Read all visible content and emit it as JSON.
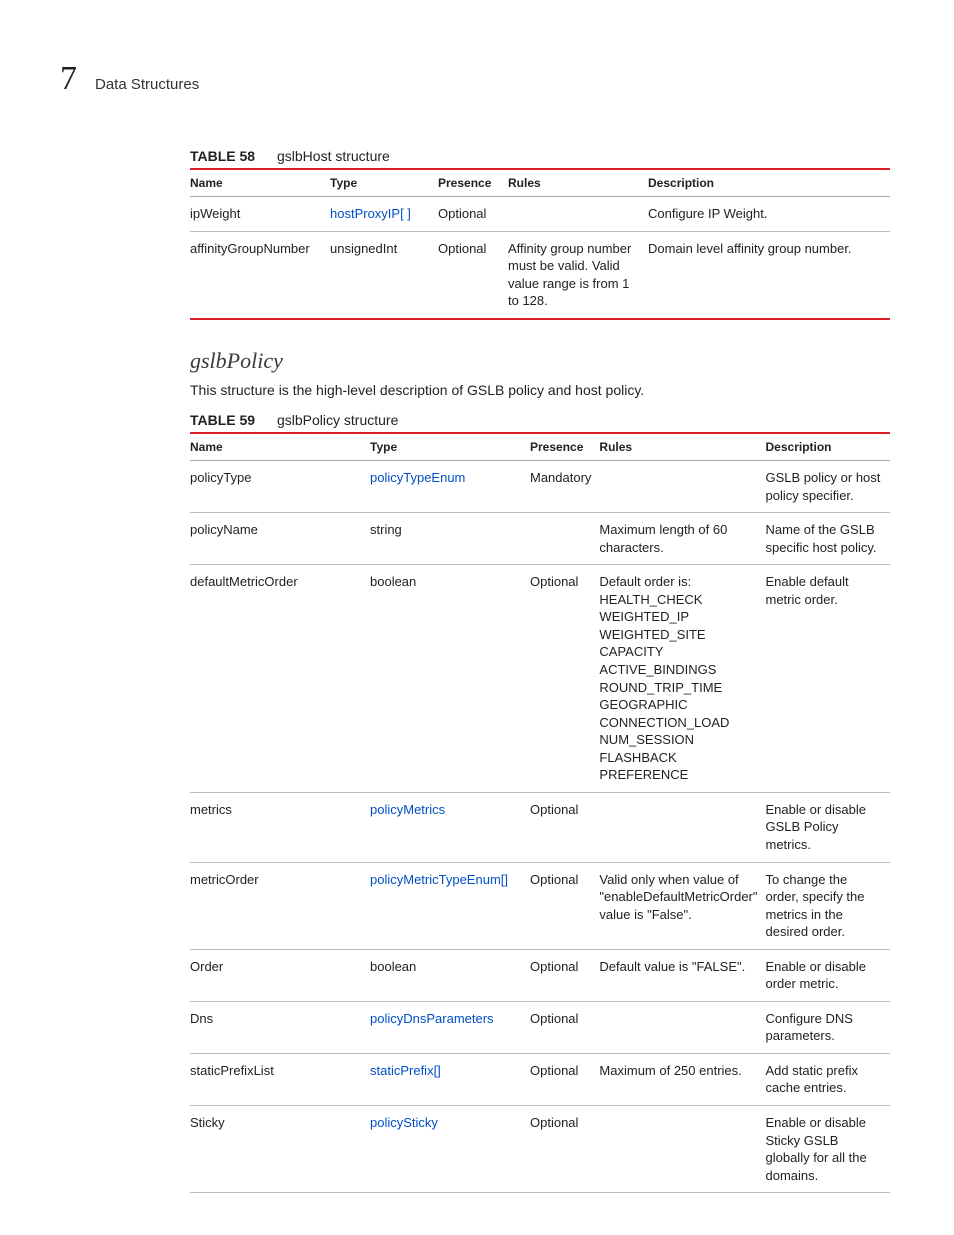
{
  "header": {
    "chapter_number": "7",
    "chapter_label": "Data Structures"
  },
  "table58": {
    "label": "TABLE 58",
    "title": "gslbHost structure",
    "columns": [
      "Name",
      "Type",
      "Presence",
      "Rules",
      "Description"
    ],
    "rows": [
      {
        "name": "ipWeight",
        "type_text": "hostProxyIP[ ]",
        "type_is_link": true,
        "presence": "Optional",
        "rules": "",
        "description": "Configure IP Weight."
      },
      {
        "name": "affinityGroupNumber",
        "type_text": "unsignedInt",
        "type_is_link": false,
        "presence": "Optional",
        "rules": "Affinity group number must be valid. Valid value range is from 1 to 128.",
        "description": "Domain level affinity group number."
      }
    ]
  },
  "section": {
    "heading": "gslbPolicy",
    "description": "This structure is the high-level description of GSLB policy and host policy."
  },
  "table59": {
    "label": "TABLE 59",
    "title": "gslbPolicy structure",
    "columns": [
      "Name",
      "Type",
      "Presence",
      "Rules",
      "Description"
    ],
    "rows": [
      {
        "name": "policyType",
        "type_text": "policyTypeEnum",
        "type_is_link": true,
        "presence": "Mandatory",
        "rules": "",
        "description": "GSLB policy or host policy specifier."
      },
      {
        "name": "policyName",
        "type_text": "string",
        "type_is_link": false,
        "presence": "",
        "rules": "Maximum length of 60 characters.",
        "description": "Name of the GSLB specific host policy."
      },
      {
        "name": "defaultMetricOrder",
        "type_text": "boolean",
        "type_is_link": false,
        "presence": "Optional",
        "rules": "Default order is:\nHEALTH_CHECK\nWEIGHTED_IP\nWEIGHTED_SITE\nCAPACITY\nACTIVE_BINDINGS\nROUND_TRIP_TIME\nGEOGRAPHIC\nCONNECTION_LOAD\nNUM_SESSION\nFLASHBACK\nPREFERENCE",
        "description": "Enable default metric order."
      },
      {
        "name": "metrics",
        "type_text": "policyMetrics",
        "type_is_link": true,
        "presence": "Optional",
        "rules": "",
        "description": "Enable or disable GSLB Policy metrics."
      },
      {
        "name": "metricOrder",
        "type_text": "policyMetricTypeEnum[]",
        "type_is_link": true,
        "presence": "Optional",
        "rules": "Valid only when value of \"enableDefaultMetricOrder\" value is \"False\".",
        "description": "To change the order, specify the metrics in the desired order."
      },
      {
        "name": "Order",
        "type_text": "boolean",
        "type_is_link": false,
        "presence": "Optional",
        "rules": "Default value is \"FALSE\".",
        "description": "Enable or disable order metric."
      },
      {
        "name": "Dns",
        "type_text": "policyDnsParameters",
        "type_is_link": true,
        "presence": "Optional",
        "rules": "",
        "description": "Configure DNS parameters."
      },
      {
        "name": "staticPrefixList",
        "type_text": "staticPrefix[]",
        "type_is_link": true,
        "presence": "Optional",
        "rules": "Maximum of 250 entries.",
        "description": "Add static prefix cache entries."
      },
      {
        "name": "Sticky",
        "type_text": "policySticky",
        "type_is_link": true,
        "presence": "Optional",
        "rules": "",
        "description": "Enable or disable Sticky GSLB globally for all the domains."
      }
    ]
  }
}
